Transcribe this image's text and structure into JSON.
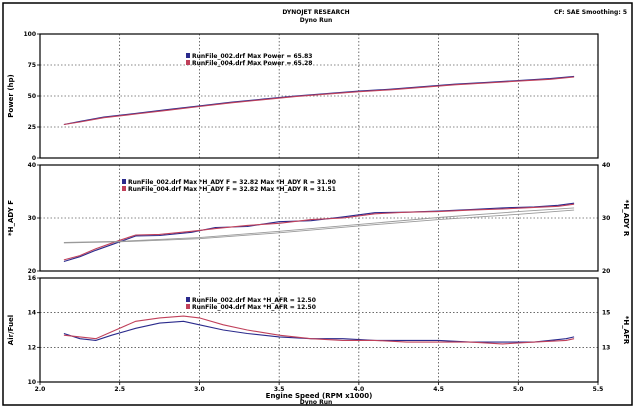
{
  "header": {
    "title": "DYNOJET RESEARCH",
    "subtitle": "Dyno Run",
    "corner": "CF: SAE  Smoothing: 5",
    "footer": "Dyno Run"
  },
  "colors": {
    "series1": "#2a2a8c",
    "series2": "#c0405a",
    "grid": "#111111",
    "ref": "#9a9a9a"
  },
  "chart_data": [
    {
      "type": "line",
      "ylabel": "Power (hp)",
      "ylim": [
        0,
        100
      ],
      "yticks": [
        "100",
        "75",
        "50",
        "25",
        "0"
      ],
      "legend": [
        {
          "text": "RunFile_002.drf Max Power = 65.83"
        },
        {
          "text": "RunFile_004.drf Max Power = 65.28"
        }
      ],
      "series": [
        {
          "name": "RunFile_002.drf",
          "x": [
            2.15,
            2.25,
            2.4,
            2.6,
            2.8,
            3.0,
            3.2,
            3.4,
            3.6,
            3.8,
            4.0,
            4.2,
            4.4,
            4.6,
            4.8,
            5.0,
            5.2,
            5.35
          ],
          "values": [
            27,
            29.5,
            33,
            36,
            39,
            42,
            45,
            47.5,
            50,
            52,
            54,
            55.5,
            57.5,
            59.5,
            61,
            62.5,
            64,
            65.8
          ]
        },
        {
          "name": "RunFile_004.drf",
          "x": [
            2.15,
            2.25,
            2.4,
            2.6,
            2.8,
            3.0,
            3.2,
            3.4,
            3.6,
            3.8,
            4.0,
            4.2,
            4.4,
            4.6,
            4.8,
            5.0,
            5.2,
            5.35
          ],
          "values": [
            27,
            29,
            32.5,
            35.5,
            38.5,
            41.5,
            44.5,
            47,
            49.5,
            51.5,
            53.5,
            55,
            57,
            59,
            60.5,
            62,
            63.5,
            65.3
          ]
        }
      ]
    },
    {
      "type": "line",
      "ylabel": "*H_ADY F",
      "ylabel_right": "*H_ADY R",
      "ylim": [
        20,
        40
      ],
      "yticks": [
        "40",
        "30",
        "20"
      ],
      "yticks_right": [
        "40",
        "30",
        "20"
      ],
      "legend": [
        {
          "text": "RunFile_002.drf Max *H_ADY F = 32.82     Max *H_ADY R = 31.90"
        },
        {
          "text": "RunFile_004.drf Max *H_ADY F = 32.82     Max *H_ADY R = 31.51"
        }
      ],
      "series": [
        {
          "name": "RunFile_002.drf",
          "x": [
            2.15,
            2.25,
            2.35,
            2.5,
            2.6,
            2.75,
            2.95,
            3.1,
            3.3,
            3.5,
            3.7,
            3.9,
            4.1,
            4.3,
            4.5,
            4.7,
            4.9,
            5.1,
            5.25,
            5.35
          ],
          "values": [
            21.8,
            22.7,
            23.9,
            25.5,
            26.6,
            26.7,
            27.3,
            28.2,
            28.4,
            29.3,
            29.5,
            30.2,
            31,
            31.1,
            31.3,
            31.6,
            31.9,
            32.1,
            32.4,
            32.8
          ]
        },
        {
          "name": "RunFile_004.drf",
          "x": [
            2.15,
            2.25,
            2.35,
            2.5,
            2.6,
            2.75,
            2.95,
            3.1,
            3.3,
            3.5,
            3.7,
            3.9,
            4.1,
            4.3,
            4.5,
            4.7,
            4.9,
            5.1,
            5.25,
            5.35
          ],
          "values": [
            22.1,
            22.9,
            24.2,
            25.8,
            26.8,
            26.9,
            27.5,
            28,
            28.6,
            29,
            29.7,
            30,
            30.8,
            31.1,
            31.2,
            31.5,
            31.7,
            32,
            32.2,
            32.6
          ]
        },
        {
          "name": "RunFile_002.drf (R)",
          "x": [
            2.15,
            2.5,
            3.0,
            3.5,
            4.0,
            4.5,
            5.0,
            5.35
          ],
          "values": [
            25.4,
            25.6,
            26.3,
            27.5,
            28.8,
            30.1,
            31.2,
            31.9
          ]
        },
        {
          "name": "RunFile_004.drf (R)",
          "x": [
            2.15,
            2.5,
            3.0,
            3.5,
            4.0,
            4.5,
            5.0,
            5.35
          ],
          "values": [
            25.3,
            25.5,
            26.1,
            27.2,
            28.5,
            29.7,
            30.7,
            31.5
          ]
        }
      ]
    },
    {
      "type": "line",
      "ylabel": "Air/Fuel",
      "ylabel_right": "*H_AFR",
      "xlabel": "Engine Speed (RPM x1000)",
      "ylim": [
        10,
        16
      ],
      "xlim": [
        2.0,
        5.5
      ],
      "xticks": [
        "2.0",
        "2.5",
        "3.0",
        "3.5",
        "4.0",
        "4.5",
        "5.0",
        "5.5"
      ],
      "yticks": [
        "16",
        "14",
        "12",
        "10"
      ],
      "yticks_right": [
        "15",
        "13"
      ],
      "legend": [
        {
          "text": "RunFile_002.drf Max *H_AFR = 12.50"
        },
        {
          "text": "RunFile_004.drf Max *H_AFR = 12.50"
        }
      ],
      "series": [
        {
          "name": "RunFile_002.drf",
          "x": [
            2.15,
            2.25,
            2.35,
            2.45,
            2.6,
            2.75,
            2.9,
            3.0,
            3.15,
            3.3,
            3.5,
            3.7,
            3.9,
            4.1,
            4.3,
            4.5,
            4.7,
            4.9,
            5.1,
            5.3,
            5.35
          ],
          "values": [
            12.8,
            12.5,
            12.4,
            12.7,
            13.1,
            13.4,
            13.5,
            13.3,
            13.0,
            12.8,
            12.6,
            12.5,
            12.5,
            12.4,
            12.4,
            12.4,
            12.3,
            12.3,
            12.3,
            12.5,
            12.6
          ]
        },
        {
          "name": "RunFile_004.drf",
          "x": [
            2.15,
            2.25,
            2.35,
            2.45,
            2.6,
            2.75,
            2.9,
            3.0,
            3.15,
            3.3,
            3.5,
            3.7,
            3.9,
            4.1,
            4.3,
            4.5,
            4.7,
            4.9,
            5.1,
            5.3,
            5.35
          ],
          "values": [
            12.7,
            12.6,
            12.5,
            12.9,
            13.5,
            13.7,
            13.8,
            13.7,
            13.3,
            13.0,
            12.7,
            12.5,
            12.4,
            12.4,
            12.3,
            12.3,
            12.3,
            12.2,
            12.3,
            12.4,
            12.5
          ]
        }
      ]
    }
  ]
}
